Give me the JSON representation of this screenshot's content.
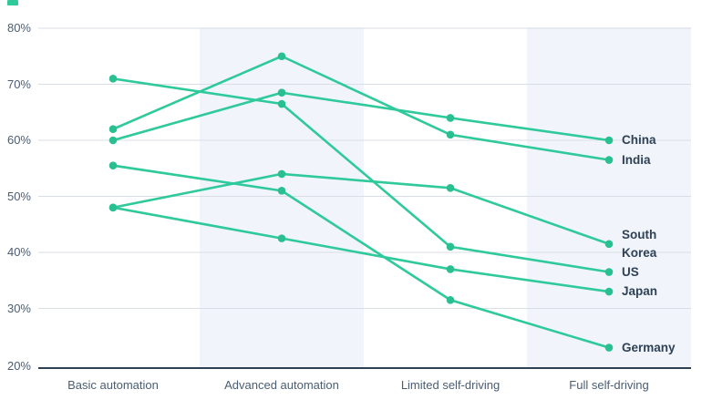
{
  "brand_mark": {
    "color": "#2fc99b"
  },
  "chart_data": {
    "type": "line",
    "title": "",
    "xlabel": "",
    "ylabel": "",
    "categories": [
      "Basic automation",
      "Advanced automation",
      "Limited self-driving",
      "Full self-driving"
    ],
    "series": [
      {
        "name": "China",
        "values": [
          60,
          68.5,
          64,
          60
        ]
      },
      {
        "name": "India",
        "values": [
          62,
          75,
          61,
          56.5
        ]
      },
      {
        "name": "South Korea",
        "values": [
          48,
          54,
          51.5,
          41.5
        ]
      },
      {
        "name": "US",
        "values": [
          71,
          66.5,
          41,
          36.5
        ]
      },
      {
        "name": "Japan",
        "values": [
          48,
          42.5,
          37,
          33
        ]
      },
      {
        "name": "Germany",
        "values": [
          55.5,
          51,
          31.5,
          23
        ]
      }
    ],
    "ylim": [
      20,
      80
    ],
    "ytick_step": 10,
    "ytick_labels": [
      "80%",
      "70%",
      "60%",
      "50%",
      "40%",
      "30%",
      "20%"
    ],
    "grid": "horizontal",
    "legend_position": "right-inline-labels",
    "highlight_bands": [
      "Advanced automation",
      "Full self-driving"
    ],
    "style": {
      "line_color": "#2fc99b",
      "dot_color": "#29bf90",
      "band_color": "#f1f5fb",
      "gridline_color": "#d9dee6",
      "axis_color": "#2e4154",
      "tick_text_color": "#4a5d72",
      "label_text_color": "#2f4155"
    }
  }
}
